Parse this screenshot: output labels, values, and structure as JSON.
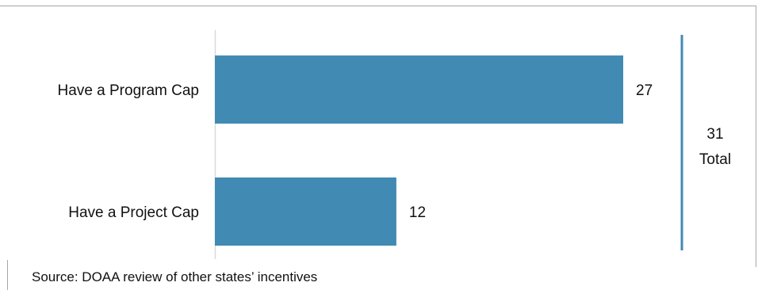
{
  "chart_data": {
    "type": "bar",
    "orientation": "horizontal",
    "categories": [
      "Have a Program Cap",
      "Have a Project Cap"
    ],
    "values": [
      27,
      12
    ],
    "xlim": [
      0,
      31
    ],
    "grid": false,
    "bar_color": "#418ab3",
    "axis_color": "#d9d9d9",
    "total": {
      "value": "31",
      "label": "Total",
      "bracket_color": "#418ab3"
    }
  },
  "source": "Source: DOAA review of other states’ incentives"
}
